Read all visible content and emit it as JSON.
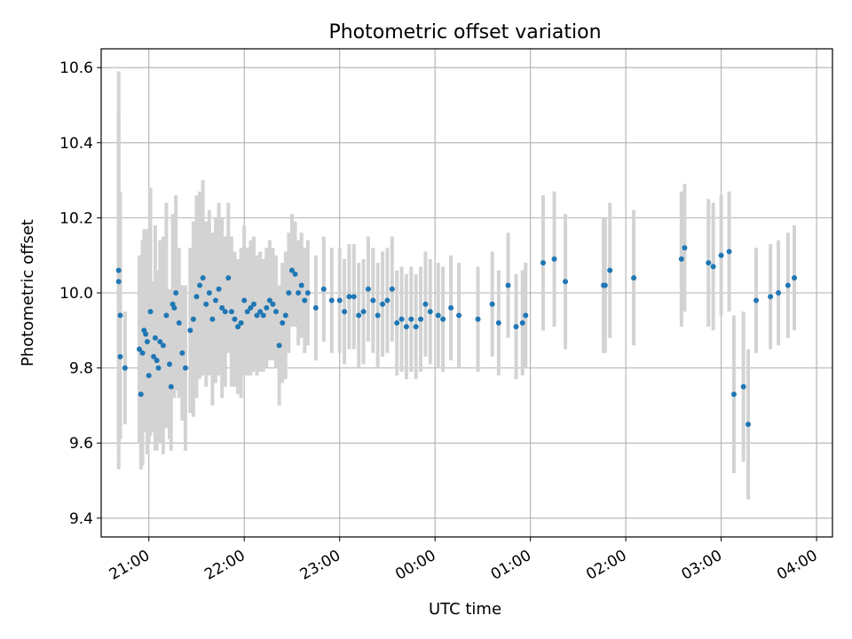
{
  "chart_data": {
    "type": "scatter",
    "title": "Photometric offset variation",
    "xlabel": "UTC time",
    "ylabel": "Photometric offset",
    "x_unit": "hours (UTC clock time; values past 24:00 wrap to next day)",
    "xlim": [
      "20:30",
      "04:10"
    ],
    "ylim": [
      9.35,
      10.65
    ],
    "x_ticks": [
      "21:00",
      "22:00",
      "23:00",
      "00:00",
      "01:00",
      "02:00",
      "03:00",
      "04:00"
    ],
    "y_ticks": [
      "9.4",
      "9.6",
      "9.8",
      "10.0",
      "10.2",
      "10.4",
      "10.6"
    ],
    "grid": true,
    "colors": {
      "points": "#1f77b4",
      "errorbars": "#d3d3d3",
      "grid": "#b0b0b0"
    },
    "series": [
      {
        "x": [
          "20:41",
          "20:41",
          "20:42",
          "20:42",
          "20:45",
          "20:54",
          "20:55",
          "20:56",
          "20:57",
          "20:58",
          "20:59",
          "21:00",
          "21:01",
          "21:03",
          "21:04",
          "21:05",
          "21:06",
          "21:07",
          "21:09",
          "21:11",
          "21:13",
          "21:14",
          "21:15",
          "21:16",
          "21:17",
          "21:19",
          "21:21",
          "21:23",
          "21:26",
          "21:28",
          "21:30",
          "21:32",
          "21:34",
          "21:36",
          "21:38",
          "21:40",
          "21:42",
          "21:44",
          "21:46",
          "21:48",
          "21:50",
          "21:52",
          "21:54",
          "21:56",
          "21:58",
          "22:00",
          "22:02",
          "22:04",
          "22:06",
          "22:08",
          "22:10",
          "22:12",
          "22:14",
          "22:16",
          "22:18",
          "22:20",
          "22:22",
          "22:24",
          "22:26",
          "22:28",
          "22:30",
          "22:32",
          "22:34",
          "22:36",
          "22:38",
          "22:40",
          "22:45",
          "22:50",
          "22:55",
          "23:00",
          "23:03",
          "23:06",
          "23:09",
          "23:12",
          "23:15",
          "23:18",
          "23:21",
          "23:24",
          "23:27",
          "23:30",
          "23:33",
          "23:36",
          "23:39",
          "23:42",
          "23:45",
          "23:48",
          "23:51",
          "23:54",
          "23:57",
          "00:02",
          "00:05",
          "00:10",
          "00:15",
          "00:27",
          "00:36",
          "00:40",
          "00:46",
          "00:51",
          "00:55",
          "00:57",
          "01:08",
          "01:15",
          "01:22",
          "01:46",
          "01:47",
          "01:50",
          "02:05",
          "02:35",
          "02:37",
          "02:52",
          "02:55",
          "03:00",
          "03:05",
          "03:08",
          "03:14",
          "03:17",
          "03:22",
          "03:31",
          "03:36",
          "03:42",
          "03:46"
        ],
        "y": [
          10.06,
          10.03,
          9.94,
          9.83,
          9.8,
          9.85,
          9.73,
          9.84,
          9.9,
          9.89,
          9.87,
          9.78,
          9.95,
          9.83,
          9.88,
          9.82,
          9.8,
          9.87,
          9.86,
          9.94,
          9.81,
          9.75,
          9.97,
          9.96,
          10.0,
          9.92,
          9.84,
          9.8,
          9.9,
          9.93,
          9.99,
          10.02,
          10.04,
          9.97,
          10.0,
          9.93,
          9.98,
          10.01,
          9.96,
          9.95,
          10.04,
          9.95,
          9.93,
          9.91,
          9.92,
          9.98,
          9.95,
          9.96,
          9.97,
          9.94,
          9.95,
          9.94,
          9.96,
          9.98,
          9.97,
          9.95,
          9.86,
          9.92,
          9.94,
          10.0,
          10.06,
          10.05,
          10.0,
          10.02,
          9.98,
          10.0,
          9.96,
          10.01,
          9.98,
          9.98,
          9.95,
          9.99,
          9.99,
          9.94,
          9.95,
          10.01,
          9.98,
          9.94,
          9.97,
          9.98,
          10.01,
          9.92,
          9.93,
          9.91,
          9.93,
          9.91,
          9.93,
          9.97,
          9.95,
          9.94,
          9.93,
          9.96,
          9.94,
          9.93,
          9.97,
          9.92,
          10.02,
          9.91,
          9.92,
          9.94,
          10.08,
          10.09,
          10.03,
          10.02,
          10.02,
          10.06,
          10.04,
          10.09,
          10.12,
          10.08,
          10.07,
          10.1,
          10.11,
          9.73,
          9.75,
          9.65,
          9.98,
          9.99,
          10.0,
          10.02,
          10.04
        ],
        "yerr_upper": [
          0.53,
          0.45,
          0.33,
          0.2,
          0.15,
          0.25,
          0.2,
          0.3,
          0.27,
          0.24,
          0.3,
          0.18,
          0.33,
          0.2,
          0.3,
          0.24,
          0.2,
          0.27,
          0.29,
          0.3,
          0.2,
          0.17,
          0.24,
          0.24,
          0.26,
          0.2,
          0.18,
          0.22,
          0.22,
          0.26,
          0.27,
          0.25,
          0.26,
          0.22,
          0.22,
          0.23,
          0.22,
          0.23,
          0.24,
          0.2,
          0.2,
          0.2,
          0.18,
          0.18,
          0.2,
          0.2,
          0.17,
          0.18,
          0.18,
          0.16,
          0.16,
          0.15,
          0.16,
          0.16,
          0.15,
          0.15,
          0.16,
          0.16,
          0.17,
          0.16,
          0.15,
          0.14,
          0.14,
          0.14,
          0.14,
          0.14,
          0.14,
          0.14,
          0.14,
          0.14,
          0.14,
          0.14,
          0.14,
          0.14,
          0.14,
          0.14,
          0.14,
          0.14,
          0.14,
          0.14,
          0.14,
          0.14,
          0.14,
          0.14,
          0.14,
          0.14,
          0.14,
          0.14,
          0.14,
          0.14,
          0.14,
          0.14,
          0.14,
          0.14,
          0.14,
          0.14,
          0.14,
          0.14,
          0.14,
          0.14,
          0.18,
          0.18,
          0.18,
          0.18,
          0.18,
          0.18,
          0.18,
          0.18,
          0.17,
          0.17,
          0.17,
          0.16,
          0.16,
          0.21,
          0.2,
          0.2,
          0.14,
          0.14,
          0.14,
          0.14,
          0.14
        ],
        "yerr_lower": [
          0.53,
          0.45,
          0.33,
          0.2,
          0.15,
          0.25,
          0.2,
          0.3,
          0.27,
          0.24,
          0.3,
          0.18,
          0.33,
          0.2,
          0.3,
          0.24,
          0.2,
          0.27,
          0.29,
          0.3,
          0.2,
          0.17,
          0.24,
          0.24,
          0.26,
          0.2,
          0.18,
          0.22,
          0.22,
          0.26,
          0.27,
          0.25,
          0.26,
          0.22,
          0.22,
          0.23,
          0.22,
          0.23,
          0.24,
          0.2,
          0.2,
          0.2,
          0.18,
          0.18,
          0.2,
          0.2,
          0.17,
          0.18,
          0.18,
          0.16,
          0.16,
          0.15,
          0.16,
          0.16,
          0.15,
          0.15,
          0.16,
          0.16,
          0.17,
          0.16,
          0.15,
          0.14,
          0.14,
          0.14,
          0.14,
          0.14,
          0.14,
          0.14,
          0.14,
          0.14,
          0.14,
          0.14,
          0.14,
          0.14,
          0.14,
          0.14,
          0.14,
          0.14,
          0.14,
          0.14,
          0.14,
          0.14,
          0.14,
          0.14,
          0.14,
          0.14,
          0.14,
          0.14,
          0.14,
          0.14,
          0.14,
          0.14,
          0.14,
          0.14,
          0.14,
          0.14,
          0.14,
          0.14,
          0.14,
          0.14,
          0.18,
          0.18,
          0.18,
          0.18,
          0.18,
          0.18,
          0.18,
          0.18,
          0.17,
          0.17,
          0.17,
          0.16,
          0.16,
          0.21,
          0.2,
          0.2,
          0.14,
          0.14,
          0.14,
          0.14,
          0.14
        ]
      }
    ]
  }
}
